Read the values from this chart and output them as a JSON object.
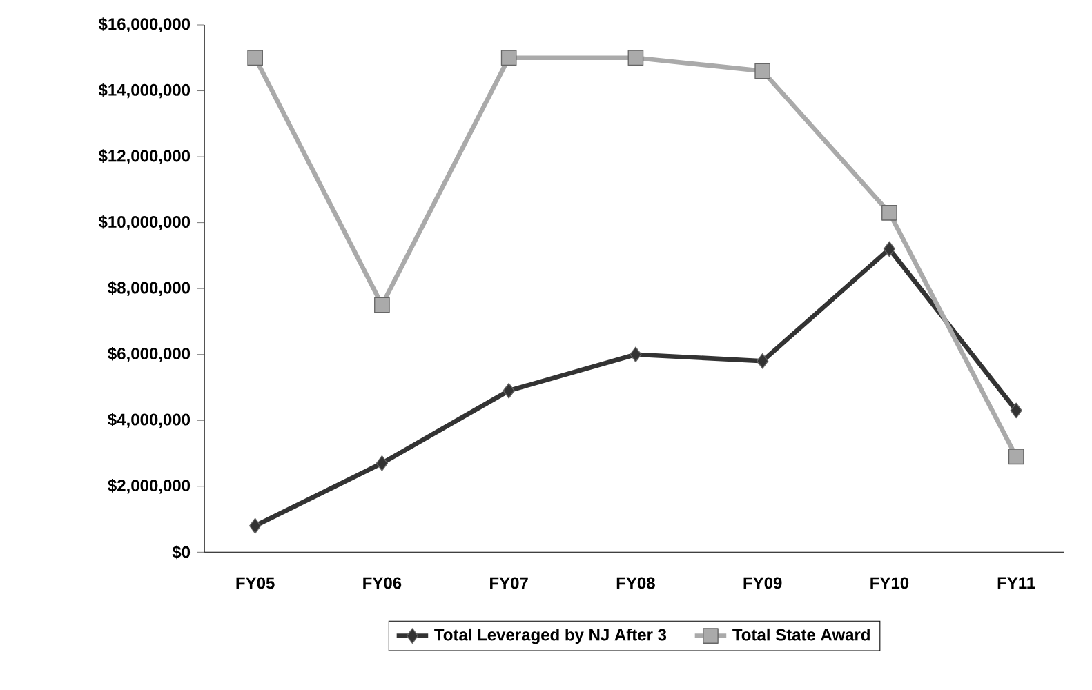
{
  "chart_data": {
    "type": "line",
    "categories": [
      "FY05",
      "FY06",
      "FY07",
      "FY08",
      "FY09",
      "FY10",
      "FY11"
    ],
    "series": [
      {
        "name": "Total Leveraged by NJ After 3",
        "color": "#333333",
        "marker": "diamond",
        "values": [
          800000,
          2700000,
          4900000,
          6000000,
          5800000,
          9200000,
          4300000
        ]
      },
      {
        "name": "Total State Award",
        "color": "#aaaaaa",
        "marker": "square",
        "values": [
          15000000,
          7500000,
          15000000,
          15000000,
          14600000,
          10300000,
          2900000
        ]
      }
    ],
    "ylim": [
      0,
      16000000
    ],
    "yticks": [
      {
        "value": 0,
        "label": "$0"
      },
      {
        "value": 2000000,
        "label": "$2,000,000"
      },
      {
        "value": 4000000,
        "label": "$4,000,000"
      },
      {
        "value": 6000000,
        "label": "$6,000,000"
      },
      {
        "value": 8000000,
        "label": "$8,000,000"
      },
      {
        "value": 10000000,
        "label": "$10,000,000"
      },
      {
        "value": 12000000,
        "label": "$12,000,000"
      },
      {
        "value": 14000000,
        "label": "$14,000,000"
      },
      {
        "value": 16000000,
        "label": "$16,000,000"
      }
    ],
    "grid": false,
    "legend": "bottom",
    "line_style": "solid"
  }
}
